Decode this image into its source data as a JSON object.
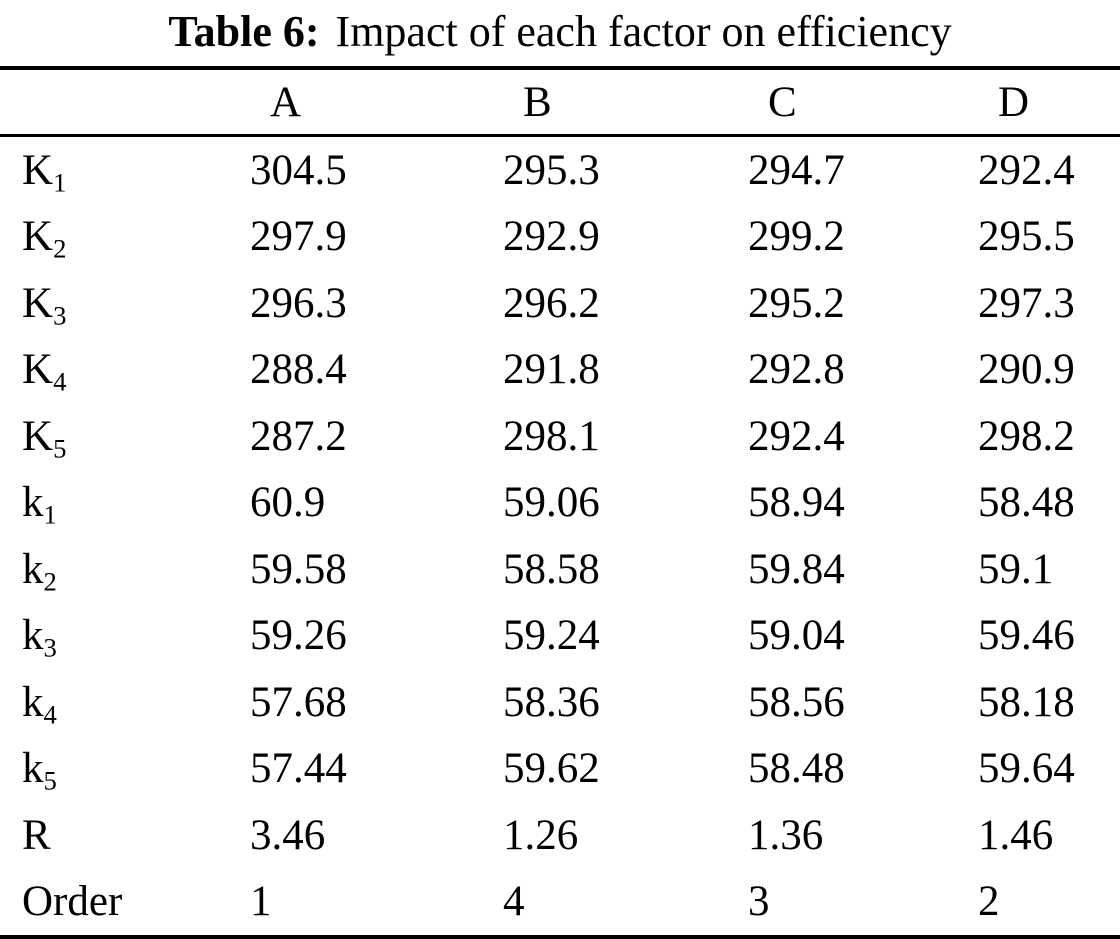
{
  "page": {
    "title_label": "Table 6:",
    "title_text": "Impact of each factor on efficiency"
  },
  "table": {
    "columns": [
      "A",
      "B",
      "C",
      "D"
    ],
    "rows": [
      {
        "label": "K",
        "sub": "1",
        "values": [
          "304.5",
          "295.3",
          "294.7",
          "292.4"
        ]
      },
      {
        "label": "K",
        "sub": "2",
        "values": [
          "297.9",
          "292.9",
          "299.2",
          "295.5"
        ]
      },
      {
        "label": "K",
        "sub": "3",
        "values": [
          "296.3",
          "296.2",
          "295.2",
          "297.3"
        ]
      },
      {
        "label": "K",
        "sub": "4",
        "values": [
          "288.4",
          "291.8",
          "292.8",
          "290.9"
        ]
      },
      {
        "label": "K",
        "sub": "5",
        "values": [
          "287.2",
          "298.1",
          "292.4",
          "298.2"
        ]
      },
      {
        "label": "k",
        "sub": "1",
        "values": [
          "60.9",
          "59.06",
          "58.94",
          "58.48"
        ]
      },
      {
        "label": "k",
        "sub": "2",
        "values": [
          "59.58",
          "58.58",
          "59.84",
          "59.1"
        ]
      },
      {
        "label": "k",
        "sub": "3",
        "values": [
          "59.26",
          "59.24",
          "59.04",
          "59.46"
        ]
      },
      {
        "label": "k",
        "sub": "4",
        "values": [
          "57.68",
          "58.36",
          "58.56",
          "58.18"
        ]
      },
      {
        "label": "k",
        "sub": "5",
        "values": [
          "57.44",
          "59.62",
          "58.48",
          "59.64"
        ]
      },
      {
        "label": "R",
        "sub": "",
        "values": [
          "3.46",
          "1.26",
          "1.36",
          "1.46"
        ]
      },
      {
        "label": "Order",
        "sub": "",
        "values": [
          "1",
          "4",
          "3",
          "2"
        ]
      }
    ]
  },
  "colors": {
    "text": "#000000",
    "background": "#ffffff",
    "rule": "#000000"
  }
}
